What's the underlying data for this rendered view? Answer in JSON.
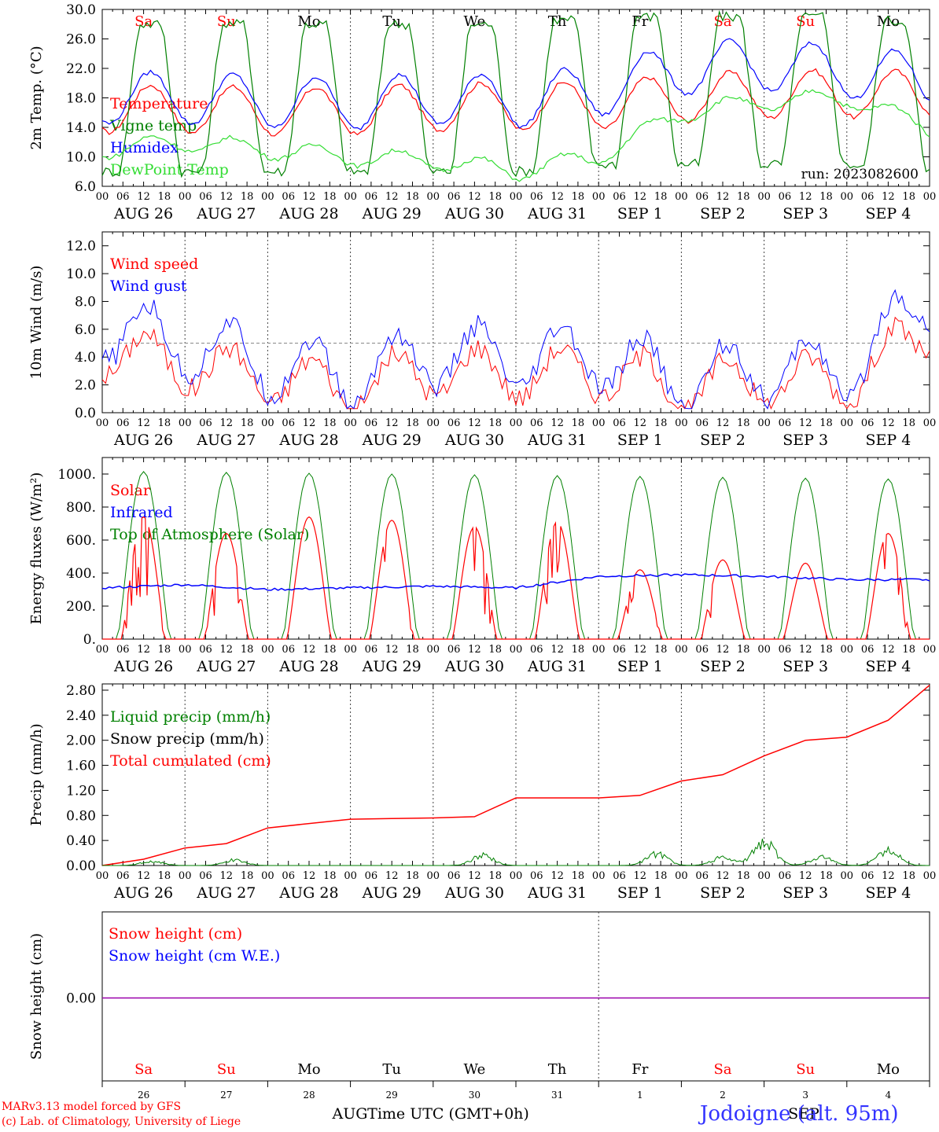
{
  "chart_data": [
    {
      "type": "line",
      "ylabel": "2m Temp. (°C)",
      "ylim": [
        6,
        30
      ],
      "yticks": [
        "6.0",
        "10.0",
        "14.0",
        "18.0",
        "22.0",
        "26.0",
        "30.0"
      ],
      "annotation": "run: 2023082600",
      "legend": [
        "Temperature",
        "Vigne temp",
        "Humidex",
        "DewPoint Temp"
      ],
      "series": [
        {
          "name": "Temperature",
          "color": "#ff0000",
          "mean": 17,
          "amp": 3.2,
          "trend": [
            16.5,
            16.5,
            16.2,
            16.2,
            16.8,
            16.8,
            17.0,
            18.0,
            18.5,
            18.6,
            18.4
          ]
        },
        {
          "name": "Vigne temp",
          "color": "#008000",
          "mean": 18,
          "amp": 10,
          "trend": [
            18,
            18,
            18,
            18,
            18,
            18,
            19,
            19,
            19,
            19,
            18
          ]
        },
        {
          "name": "Humidex",
          "color": "#0000ff",
          "mean": 18.2,
          "amp": 3.5,
          "trend": [
            18,
            18,
            17.5,
            17.2,
            18.0,
            17.5,
            19,
            22,
            22.5,
            21.5,
            20.5
          ]
        },
        {
          "name": "DewPoint Temp",
          "color": "#33dd33",
          "mean": 10.5,
          "amp": 1.2,
          "trend": [
            11,
            12,
            11,
            10,
            9.5,
            8,
            10,
            16,
            17.5,
            18,
            14
          ]
        }
      ]
    },
    {
      "type": "line",
      "ylabel": "10m Wind (m/s)",
      "ylim": [
        0,
        13
      ],
      "yticks": [
        "0.0",
        "2.0",
        "4.0",
        "6.0",
        "8.0",
        "10.0",
        "12.0"
      ],
      "reference_line": 5,
      "legend": [
        "Wind speed",
        "Wind gust"
      ],
      "series": [
        {
          "name": "Wind speed",
          "color": "#ff0000",
          "mean": 2.8,
          "amp": 2.2,
          "trend": [
            4.5,
            3.5,
            2.5,
            1.8,
            3.0,
            2.8,
            3.0,
            1.8,
            2.4,
            2.2,
            6.0
          ]
        },
        {
          "name": "Wind gust",
          "color": "#0000ff",
          "mean": 3.6,
          "amp": 2.8,
          "trend": [
            6.0,
            5.0,
            3.5,
            2.6,
            4.2,
            3.8,
            4.0,
            2.4,
            3.2,
            2.9,
            8.5
          ]
        }
      ]
    },
    {
      "type": "line",
      "ylabel": "Energy fluxes (W/m²)",
      "ylim": [
        0,
        1100
      ],
      "yticks": [
        "0.",
        "200.",
        "400.",
        "600.",
        "800.",
        "1000."
      ],
      "legend": [
        "Solar",
        "Infrared",
        "Top of Atmosphere (Solar)"
      ],
      "series": [
        {
          "name": "Solar",
          "color": "#ff0000",
          "daily_peak": [
            740,
            640,
            740,
            720,
            680,
            710,
            420,
            480,
            460,
            640
          ]
        },
        {
          "name": "Infrared",
          "color": "#0000ff",
          "trend": [
            310,
            330,
            300,
            310,
            320,
            310,
            380,
            390,
            380,
            360
          ]
        },
        {
          "name": "Top of Atmosphere (Solar)",
          "color": "#008000",
          "daily_peak": [
            1015,
            1010,
            1005,
            1000,
            995,
            990,
            985,
            980,
            975,
            970
          ]
        }
      ]
    },
    {
      "type": "line",
      "ylabel": "Precip (mm/h)",
      "ylim": [
        0,
        2.9
      ],
      "yticks": [
        "0.00",
        "0.40",
        "0.80",
        "1.20",
        "1.60",
        "2.00",
        "2.40",
        "2.80"
      ],
      "legend": [
        "Liquid precip (mm/h)",
        "Snow precip (mm/h)",
        "Total cumulated (cm)"
      ],
      "series": [
        {
          "name": "Total cumulated (cm)",
          "color": "#ff0000",
          "day": [
            0,
            0.5,
            1,
            1.5,
            2,
            3,
            3.5,
            4,
            4.5,
            5,
            5.5,
            6,
            6.5,
            7,
            7.5,
            8,
            8.5,
            9,
            9.5,
            10
          ],
          "values": [
            0,
            0.1,
            0.28,
            0.35,
            0.6,
            0.74,
            0.75,
            0.76,
            0.78,
            1.08,
            1.08,
            1.08,
            1.12,
            1.35,
            1.45,
            1.75,
            2.0,
            2.05,
            2.32,
            2.88
          ]
        },
        {
          "name": "Liquid precip (mm/h)",
          "color": "#008000",
          "bumps": [
            [
              0.6,
              0.08
            ],
            [
              1.6,
              0.1
            ],
            [
              4.6,
              0.17
            ],
            [
              6.7,
              0.2
            ],
            [
              7.5,
              0.14
            ],
            [
              8.0,
              0.42
            ],
            [
              8.7,
              0.15
            ],
            [
              9.5,
              0.27
            ]
          ]
        }
      ]
    },
    {
      "type": "line",
      "ylabel": "Snow height (cm)",
      "yticks": [
        "0.00"
      ],
      "legend": [
        "Snow height (cm)",
        "Snow height (cm W.E.)"
      ],
      "series": [
        {
          "name": "Snow height (cm)",
          "color": "#ff0000",
          "values": [
            0,
            0
          ]
        },
        {
          "name": "Snow height (cm W.E.)",
          "color": "#0000ff",
          "values": [
            0,
            0
          ]
        }
      ]
    }
  ],
  "time_axis": {
    "hour_labels": [
      "00",
      "06",
      "12",
      "18"
    ],
    "final_label": "00",
    "dates": [
      "AUG 26",
      "AUG 27",
      "AUG 28",
      "AUG 29",
      "AUG 30",
      "AUG 31",
      "SEP  1",
      "SEP  2",
      "SEP  3",
      "SEP  4"
    ],
    "weekdays": [
      "Sa",
      "Su",
      "Mo",
      "Tu",
      "We",
      "Th",
      "Fr",
      "Sa",
      "Su",
      "Mo"
    ],
    "weekend": [
      true,
      true,
      false,
      false,
      false,
      false,
      false,
      true,
      true,
      false
    ],
    "day_numbers": [
      "26",
      "27",
      "28",
      "29",
      "30",
      "31",
      "1",
      "2",
      "3",
      "4"
    ],
    "month_left": "AUG",
    "month_right": "SEP",
    "xlabel": "Time UTC (GMT+0h)"
  },
  "footer": {
    "line1": "MARv3.13 model forced by GFS",
    "line2": "(c) Lab. of Climatology, University of Liege",
    "location": "Jodoigne (alt. 95m)"
  },
  "colors": {
    "red": "#ff0000",
    "blue": "#0000ff",
    "green": "#008000",
    "lightgreen": "#33dd33",
    "purple": "#9900aa"
  }
}
